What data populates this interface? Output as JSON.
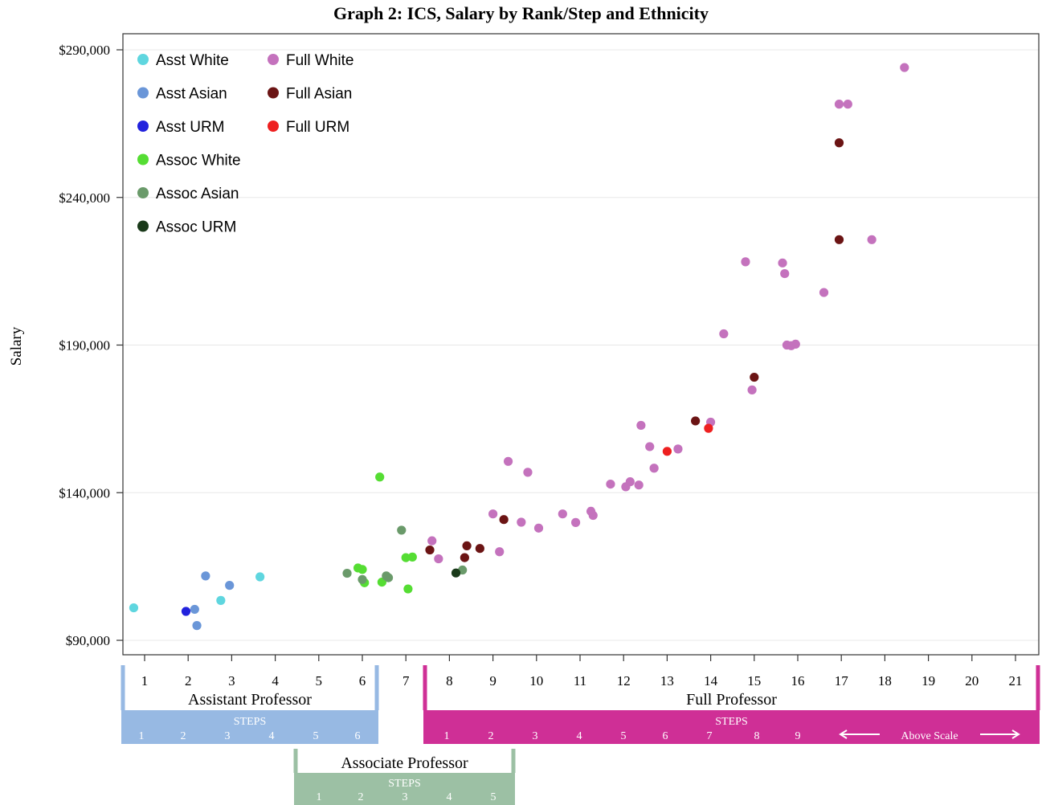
{
  "chart_data": {
    "type": "scatter",
    "title": "Graph 2: ICS, Salary by Rank/Step and Ethnicity",
    "ylabel": "Salary",
    "xlim": [
      0.5,
      21.5
    ],
    "ylim": [
      85000,
      295000
    ],
    "x_ticks": [
      1,
      2,
      3,
      4,
      5,
      6,
      7,
      8,
      9,
      10,
      11,
      12,
      13,
      14,
      15,
      16,
      17,
      18,
      19,
      20,
      21
    ],
    "y_ticks": [
      90000,
      140000,
      190000,
      240000,
      290000
    ],
    "y_tick_labels": [
      "$90,000",
      "$140,000",
      "$190,000",
      "$240,000",
      "$290,000"
    ],
    "grid": "horizontal",
    "legend_position": "top-left",
    "series": [
      {
        "name": "Asst White",
        "color": "#5fd6df",
        "points": [
          [
            0.75,
            101000
          ],
          [
            2.75,
            103500
          ],
          [
            3.65,
            111500
          ]
        ]
      },
      {
        "name": "Asst Asian",
        "color": "#6a96d8",
        "points": [
          [
            2.15,
            100500
          ],
          [
            2.2,
            95000
          ],
          [
            2.4,
            111800
          ],
          [
            2.95,
            108600
          ]
        ]
      },
      {
        "name": "Asst URM",
        "color": "#2222dd",
        "points": [
          [
            1.95,
            99800
          ]
        ]
      },
      {
        "name": "Assoc White",
        "color": "#55dd33",
        "points": [
          [
            5.9,
            114500
          ],
          [
            6.0,
            114000
          ],
          [
            6.05,
            109500
          ],
          [
            6.4,
            145300
          ],
          [
            6.45,
            109700
          ],
          [
            7.0,
            118000
          ],
          [
            7.05,
            107400
          ],
          [
            7.15,
            118200
          ]
        ]
      },
      {
        "name": "Assoc Asian",
        "color": "#6a9a6a",
        "points": [
          [
            5.65,
            112700
          ],
          [
            6.0,
            110600
          ],
          [
            6.55,
            111800
          ],
          [
            6.6,
            111200
          ],
          [
            6.9,
            127300
          ],
          [
            8.3,
            113800
          ]
        ]
      },
      {
        "name": "Assoc URM",
        "color": "#1a3a1a",
        "points": [
          [
            8.15,
            112800
          ]
        ]
      },
      {
        "name": "Full White",
        "color": "#c472bd",
        "points": [
          [
            7.6,
            123700
          ],
          [
            7.75,
            117600
          ],
          [
            9.0,
            132800
          ],
          [
            9.15,
            120000
          ],
          [
            9.35,
            150600
          ],
          [
            9.65,
            130000
          ],
          [
            9.8,
            146900
          ],
          [
            10.05,
            128000
          ],
          [
            10.6,
            132800
          ],
          [
            10.9,
            129900
          ],
          [
            11.25,
            133700
          ],
          [
            11.3,
            132300
          ],
          [
            11.7,
            142900
          ],
          [
            12.05,
            142000
          ],
          [
            12.15,
            143700
          ],
          [
            12.35,
            142600
          ],
          [
            12.4,
            162800
          ],
          [
            12.6,
            155600
          ],
          [
            12.7,
            148300
          ],
          [
            13.25,
            154800
          ],
          [
            14.0,
            163900
          ],
          [
            14.3,
            193800
          ],
          [
            14.8,
            218200
          ],
          [
            14.95,
            174800
          ],
          [
            15.65,
            217800
          ],
          [
            15.7,
            214200
          ],
          [
            15.75,
            190000
          ],
          [
            15.85,
            189800
          ],
          [
            15.95,
            190300
          ],
          [
            16.6,
            207800
          ],
          [
            16.95,
            271600
          ],
          [
            17.15,
            271600
          ],
          [
            17.7,
            225700
          ],
          [
            18.45,
            284000
          ]
        ]
      },
      {
        "name": "Full Asian",
        "color": "#6b1414",
        "points": [
          [
            7.55,
            120600
          ],
          [
            8.35,
            118000
          ],
          [
            8.4,
            122000
          ],
          [
            8.7,
            121100
          ],
          [
            9.25,
            130900
          ],
          [
            13.65,
            164300
          ],
          [
            15.0,
            179100
          ],
          [
            16.95,
            258500
          ],
          [
            16.95,
            225700
          ]
        ]
      },
      {
        "name": "Full URM",
        "color": "#ee2020",
        "points": [
          [
            13.0,
            154000
          ],
          [
            13.95,
            161800
          ]
        ]
      }
    ]
  },
  "ranks": [
    {
      "title": "Assistant Professor",
      "steps_label": "STEPS",
      "steps": [
        "1",
        "2",
        "3",
        "4",
        "5",
        "6"
      ],
      "color": "#97b9e3"
    },
    {
      "title": "Associate Professor",
      "steps_label": "STEPS",
      "steps": [
        "1",
        "2",
        "3",
        "4",
        "5"
      ],
      "color": "#9cc0a4"
    },
    {
      "title": "Full Professor",
      "steps_label": "STEPS",
      "steps": [
        "1",
        "2",
        "3",
        "4",
        "5",
        "6",
        "7",
        "8",
        "9"
      ],
      "above_scale": "Above Scale",
      "color": "#cf2f96"
    }
  ]
}
